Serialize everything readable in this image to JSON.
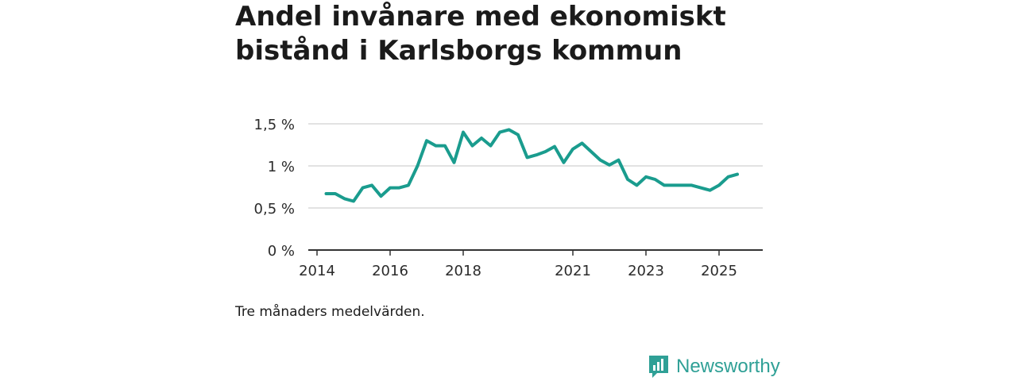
{
  "header": {
    "title": "Andel invånare med ekonomiskt bistånd i Karlsborgs kommun"
  },
  "note": "Tre månaders medelvärden.",
  "brand": {
    "name": "Newsworthy",
    "color": "#2fa096",
    "icon": "newsworthy-logo-icon"
  },
  "colors": {
    "line": "#1a9c8e",
    "grid": "#d9d9d9",
    "axis": "#333333"
  },
  "chart_data": {
    "type": "line",
    "title": "Andel invånare med ekonomiskt bistånd i Karlsborgs kommun",
    "xlabel": "",
    "ylabel": "",
    "ylim": [
      0,
      1.5
    ],
    "grid": true,
    "legend": "none",
    "y_ticks": [
      {
        "value": 0,
        "label": "0 %"
      },
      {
        "value": 0.5,
        "label": "0,5 %"
      },
      {
        "value": 1.0,
        "label": "1 %"
      },
      {
        "value": 1.5,
        "label": "1,5 %"
      }
    ],
    "x_ticks": [
      {
        "value": 2014.0,
        "label": "2014"
      },
      {
        "value": 2016.0,
        "label": "2016"
      },
      {
        "value": 2018.0,
        "label": "2018"
      },
      {
        "value": 2021.0,
        "label": "2021"
      },
      {
        "value": 2023.0,
        "label": "2023"
      },
      {
        "value": 2025.0,
        "label": "2025"
      }
    ],
    "series": [
      {
        "x": [
          2014.25,
          2014.5,
          2014.75,
          2015.0,
          2015.25,
          2015.5,
          2015.75,
          2016.0,
          2016.25,
          2016.5,
          2016.75,
          2017.0,
          2017.25,
          2017.5,
          2017.75,
          2018.0,
          2018.25,
          2018.5,
          2018.75,
          2019.0,
          2019.25,
          2019.5,
          2019.75,
          2020.0,
          2020.25,
          2020.5,
          2020.75,
          2021.0,
          2021.25,
          2021.5,
          2021.75,
          2022.0,
          2022.25,
          2022.5,
          2022.75,
          2023.0,
          2023.25,
          2023.5,
          2023.75,
          2024.0,
          2024.25,
          2024.5,
          2024.75,
          2025.0,
          2025.25,
          2025.5
        ],
        "values": [
          0.67,
          0.67,
          0.61,
          0.58,
          0.74,
          0.77,
          0.64,
          0.74,
          0.74,
          0.77,
          1.0,
          1.3,
          1.24,
          1.24,
          1.04,
          1.4,
          1.24,
          1.33,
          1.24,
          1.4,
          1.43,
          1.37,
          1.1,
          1.13,
          1.17,
          1.23,
          1.04,
          1.2,
          1.27,
          1.17,
          1.07,
          1.01,
          1.07,
          0.84,
          0.77,
          0.87,
          0.84,
          0.77,
          0.77,
          0.77,
          0.77,
          0.74,
          0.71,
          0.77,
          0.87,
          0.9
        ]
      }
    ]
  }
}
